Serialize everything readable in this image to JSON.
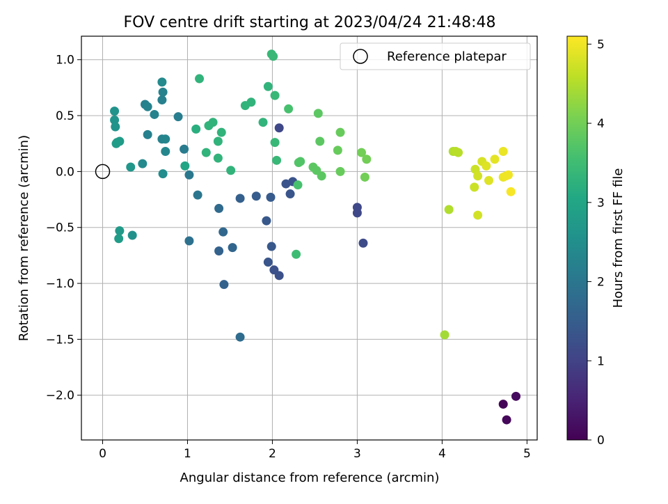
{
  "chart_data": {
    "type": "scatter",
    "title": "FOV centre drift starting at 2023/04/24 21:48:48",
    "xlabel": "Angular distance from reference (arcmin)",
    "ylabel": "Rotation from reference (arcmin)",
    "xlim": [
      -0.25,
      5.12
    ],
    "ylim": [
      -2.4,
      1.21
    ],
    "x_ticks": [
      0,
      1,
      2,
      3,
      4,
      5
    ],
    "y_ticks": [
      -2.0,
      -1.5,
      -1.0,
      -0.5,
      0.0,
      0.5,
      1.0
    ],
    "x_tick_labels": [
      "0",
      "1",
      "2",
      "3",
      "4",
      "5"
    ],
    "y_tick_labels": [
      "−2.0",
      "−1.5",
      "−1.0",
      "−0.5",
      "0.0",
      "0.5",
      "1.0"
    ],
    "grid": true,
    "legend_position": "top-right",
    "reference_point": {
      "label": "Reference platepar",
      "x": 0.0,
      "y": 0.0
    },
    "colorbar": {
      "label": "Hours from first FF file",
      "min": 0,
      "max": 5.1,
      "ticks": [
        0,
        1,
        2,
        3,
        4,
        5
      ],
      "tick_labels": [
        "0",
        "1",
        "2",
        "3",
        "4",
        "5"
      ],
      "colormap": "viridis"
    },
    "points": [
      {
        "x": 4.72,
        "y": -2.08,
        "h": 0.05
      },
      {
        "x": 4.76,
        "y": -2.22,
        "h": 0.1
      },
      {
        "x": 4.87,
        "y": -2.01,
        "h": 0.15
      },
      {
        "x": 2.08,
        "y": 0.39,
        "h": 1.1
      },
      {
        "x": 3.0,
        "y": -0.32,
        "h": 1.1
      },
      {
        "x": 3.0,
        "y": -0.37,
        "h": 1.1
      },
      {
        "x": 3.07,
        "y": -0.64,
        "h": 1.15
      },
      {
        "x": 2.08,
        "y": -0.93,
        "h": 1.25
      },
      {
        "x": 2.02,
        "y": -0.88,
        "h": 1.25
      },
      {
        "x": 2.16,
        "y": -0.11,
        "h": 1.3
      },
      {
        "x": 2.24,
        "y": -0.09,
        "h": 1.3
      },
      {
        "x": 2.21,
        "y": -0.2,
        "h": 1.35
      },
      {
        "x": 1.95,
        "y": -0.81,
        "h": 1.35
      },
      {
        "x": 1.99,
        "y": -0.67,
        "h": 1.4
      },
      {
        "x": 1.93,
        "y": -0.44,
        "h": 1.4
      },
      {
        "x": 1.98,
        "y": -0.23,
        "h": 1.45
      },
      {
        "x": 1.81,
        "y": -0.22,
        "h": 1.5
      },
      {
        "x": 1.62,
        "y": -0.24,
        "h": 1.55
      },
      {
        "x": 1.43,
        "y": -1.01,
        "h": 1.6
      },
      {
        "x": 1.37,
        "y": -0.71,
        "h": 1.6
      },
      {
        "x": 1.53,
        "y": -0.68,
        "h": 1.65
      },
      {
        "x": 1.42,
        "y": -0.54,
        "h": 1.7
      },
      {
        "x": 1.37,
        "y": -0.33,
        "h": 1.75
      },
      {
        "x": 1.62,
        "y": -1.48,
        "h": 1.8
      },
      {
        "x": 1.02,
        "y": -0.62,
        "h": 1.9
      },
      {
        "x": 1.12,
        "y": -0.21,
        "h": 2.0
      },
      {
        "x": 1.02,
        "y": -0.03,
        "h": 2.05
      },
      {
        "x": 0.96,
        "y": 0.2,
        "h": 2.1
      },
      {
        "x": 0.89,
        "y": 0.49,
        "h": 2.15
      },
      {
        "x": 0.7,
        "y": 0.64,
        "h": 2.2
      },
      {
        "x": 0.71,
        "y": 0.71,
        "h": 2.25
      },
      {
        "x": 0.7,
        "y": 0.8,
        "h": 2.4
      },
      {
        "x": 0.61,
        "y": 0.51,
        "h": 2.25
      },
      {
        "x": 0.5,
        "y": 0.6,
        "h": 2.2
      },
      {
        "x": 0.53,
        "y": 0.58,
        "h": 2.25
      },
      {
        "x": 0.53,
        "y": 0.33,
        "h": 2.2
      },
      {
        "x": 0.7,
        "y": 0.29,
        "h": 2.25
      },
      {
        "x": 0.74,
        "y": 0.29,
        "h": 2.3
      },
      {
        "x": 0.74,
        "y": 0.18,
        "h": 2.35
      },
      {
        "x": 0.71,
        "y": -0.02,
        "h": 2.45
      },
      {
        "x": 0.47,
        "y": 0.07,
        "h": 2.4
      },
      {
        "x": 0.33,
        "y": 0.04,
        "h": 2.65
      },
      {
        "x": 0.35,
        "y": -0.57,
        "h": 2.55
      },
      {
        "x": 0.2,
        "y": -0.53,
        "h": 2.75
      },
      {
        "x": 0.19,
        "y": -0.6,
        "h": 2.8
      },
      {
        "x": 0.14,
        "y": 0.54,
        "h": 2.6
      },
      {
        "x": 0.14,
        "y": 0.46,
        "h": 2.6
      },
      {
        "x": 0.15,
        "y": 0.4,
        "h": 2.6
      },
      {
        "x": 0.16,
        "y": 0.25,
        "h": 2.8
      },
      {
        "x": 0.17,
        "y": 0.26,
        "h": 2.8
      },
      {
        "x": 0.2,
        "y": 0.27,
        "h": 2.8
      },
      {
        "x": 0.97,
        "y": 0.05,
        "h": 3.0
      },
      {
        "x": 1.1,
        "y": 0.38,
        "h": 3.2
      },
      {
        "x": 1.14,
        "y": 0.83,
        "h": 3.3
      },
      {
        "x": 1.22,
        "y": 0.17,
        "h": 3.3
      },
      {
        "x": 1.25,
        "y": 0.41,
        "h": 3.3
      },
      {
        "x": 1.3,
        "y": 0.44,
        "h": 3.3
      },
      {
        "x": 1.36,
        "y": 0.27,
        "h": 3.3
      },
      {
        "x": 1.36,
        "y": 0.12,
        "h": 3.3
      },
      {
        "x": 1.4,
        "y": 0.35,
        "h": 3.3
      },
      {
        "x": 1.51,
        "y": 0.01,
        "h": 3.3
      },
      {
        "x": 1.68,
        "y": 0.59,
        "h": 3.3
      },
      {
        "x": 1.75,
        "y": 0.62,
        "h": 3.3
      },
      {
        "x": 1.89,
        "y": 0.44,
        "h": 3.3
      },
      {
        "x": 1.95,
        "y": 0.76,
        "h": 3.3
      },
      {
        "x": 1.99,
        "y": 1.05,
        "h": 3.4
      },
      {
        "x": 2.01,
        "y": 1.03,
        "h": 3.4
      },
      {
        "x": 2.03,
        "y": 0.68,
        "h": 3.4
      },
      {
        "x": 2.03,
        "y": 0.26,
        "h": 3.4
      },
      {
        "x": 2.05,
        "y": 0.1,
        "h": 3.4
      },
      {
        "x": 2.28,
        "y": -0.74,
        "h": 3.5
      },
      {
        "x": 2.19,
        "y": 0.56,
        "h": 3.6
      },
      {
        "x": 2.3,
        "y": -0.12,
        "h": 3.6
      },
      {
        "x": 2.31,
        "y": 0.08,
        "h": 3.7
      },
      {
        "x": 2.33,
        "y": 0.09,
        "h": 3.7
      },
      {
        "x": 2.48,
        "y": 0.04,
        "h": 3.8
      },
      {
        "x": 2.52,
        "y": 0.01,
        "h": 3.8
      },
      {
        "x": 2.54,
        "y": 0.52,
        "h": 3.8
      },
      {
        "x": 2.56,
        "y": 0.27,
        "h": 3.8
      },
      {
        "x": 2.58,
        "y": -0.04,
        "h": 3.8
      },
      {
        "x": 2.77,
        "y": 0.19,
        "h": 3.9
      },
      {
        "x": 2.8,
        "y": 0.35,
        "h": 3.9
      },
      {
        "x": 2.8,
        "y": 0.0,
        "h": 3.9
      },
      {
        "x": 3.05,
        "y": 0.17,
        "h": 4.0
      },
      {
        "x": 3.09,
        "y": -0.05,
        "h": 4.0
      },
      {
        "x": 3.11,
        "y": 0.11,
        "h": 4.0
      },
      {
        "x": 4.03,
        "y": -1.46,
        "h": 4.4
      },
      {
        "x": 4.08,
        "y": -0.34,
        "h": 4.5
      },
      {
        "x": 4.13,
        "y": 0.18,
        "h": 4.5
      },
      {
        "x": 4.16,
        "y": 0.18,
        "h": 4.55
      },
      {
        "x": 4.19,
        "y": 0.17,
        "h": 4.55
      },
      {
        "x": 4.38,
        "y": -0.14,
        "h": 4.7
      },
      {
        "x": 4.39,
        "y": 0.02,
        "h": 4.7
      },
      {
        "x": 4.42,
        "y": -0.04,
        "h": 4.75
      },
      {
        "x": 4.42,
        "y": -0.39,
        "h": 4.75
      },
      {
        "x": 4.47,
        "y": 0.09,
        "h": 4.8
      },
      {
        "x": 4.52,
        "y": 0.05,
        "h": 4.85
      },
      {
        "x": 4.55,
        "y": -0.08,
        "h": 4.85
      },
      {
        "x": 4.62,
        "y": 0.11,
        "h": 4.9
      },
      {
        "x": 4.72,
        "y": 0.18,
        "h": 4.95
      },
      {
        "x": 4.72,
        "y": -0.05,
        "h": 4.95
      },
      {
        "x": 4.75,
        "y": -0.04,
        "h": 5.0
      },
      {
        "x": 4.78,
        "y": -0.03,
        "h": 5.0
      },
      {
        "x": 4.81,
        "y": -0.18,
        "h": 5.05
      }
    ]
  }
}
